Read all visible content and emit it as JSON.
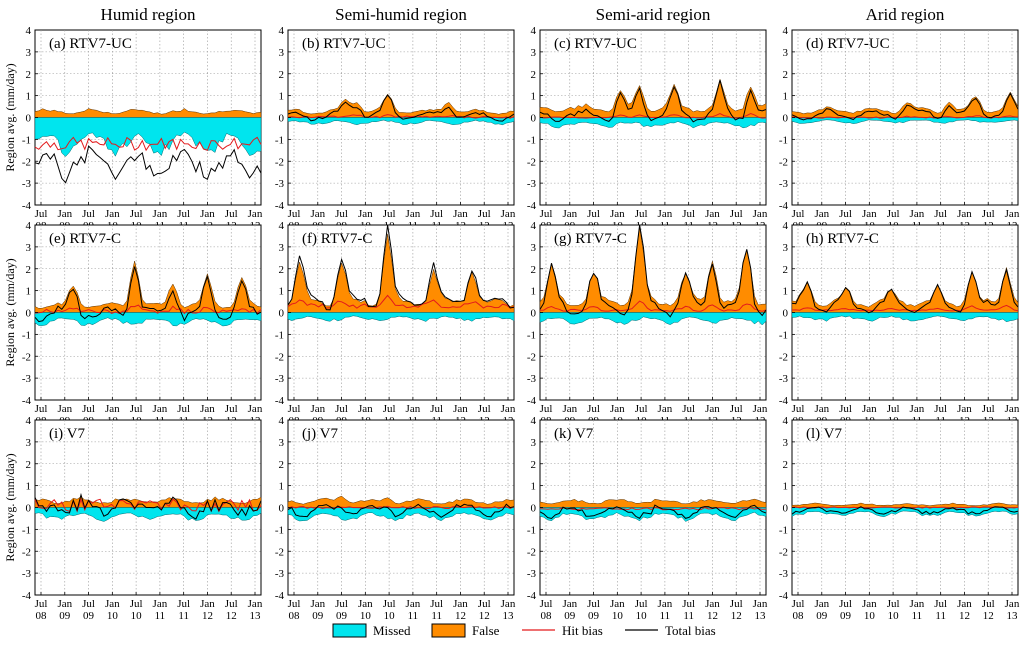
{
  "chart_data": {
    "type": "area",
    "columns": [
      "Humid region",
      "Semi-humid region",
      "Semi-arid region",
      "Arid region"
    ],
    "ylabel": "Region avg. (mm/day)",
    "ylim": [
      -4,
      4
    ],
    "yticks": [
      -4,
      -3,
      -2,
      -1,
      0,
      1,
      2,
      3,
      4
    ],
    "xtick_top": [
      "Jul",
      "Jan",
      "Jul",
      "Jan",
      "Jul",
      "Jan",
      "Jul",
      "Jan",
      "Jul",
      "Jan"
    ],
    "xtick_bottom": [
      "08",
      "09",
      "09",
      "10",
      "10",
      "11",
      "11",
      "12",
      "12",
      "13"
    ],
    "grid": true,
    "legend": {
      "position": "bottom-center",
      "items": [
        {
          "label": "Missed",
          "kind": "patch",
          "color": "#00e5ee"
        },
        {
          "label": "False",
          "kind": "patch",
          "color": "#ff8c00"
        },
        {
          "label": "Hit bias",
          "kind": "line",
          "color": "#e31a1c"
        },
        {
          "label": "Total bias",
          "kind": "line",
          "color": "#000000"
        }
      ]
    },
    "colors": {
      "missed": "#00e5ee",
      "false": "#ff8c00",
      "hit": "#e31a1c",
      "total": "#000000"
    },
    "panels": [
      {
        "label": "(a) RTV7-UC",
        "false_level": 0.3,
        "missed_level": -1.3,
        "hit_level": -1.2,
        "peaks": [],
        "hit_noise": 0.3
      },
      {
        "label": "(b) RTV7-UC",
        "false_level": 0.3,
        "missed_level": -0.25,
        "hit_level": 0.02,
        "peaks": [
          [
            15,
            0.6
          ],
          [
            18,
            0.6
          ],
          [
            26,
            0.9
          ],
          [
            42,
            0.6
          ]
        ],
        "hit_noise": 0.05
      },
      {
        "label": "(c) RTV7-UC",
        "false_level": 0.45,
        "missed_level": -0.35,
        "hit_level": 0.0,
        "peaks": [
          [
            21,
            1.0
          ],
          [
            26,
            1.2
          ],
          [
            35,
            1.1
          ],
          [
            47,
            1.3
          ],
          [
            55,
            1.3
          ]
        ],
        "hit_noise": 0.03
      },
      {
        "label": "(d) RTV7-UC",
        "false_level": 0.35,
        "missed_level": -0.2,
        "hit_level": 0.0,
        "peaks": [
          [
            30,
            0.5
          ],
          [
            41,
            0.5
          ],
          [
            48,
            0.8
          ],
          [
            57,
            0.8
          ]
        ],
        "hit_noise": 0.03
      },
      {
        "label": "(e) RTV7-C",
        "false_level": 0.35,
        "missed_level": -0.45,
        "hit_level": 0.05,
        "peaks": [
          [
            10,
            1.1
          ],
          [
            26,
            2.5
          ],
          [
            36,
            1.3
          ],
          [
            45,
            1.6
          ],
          [
            54,
            1.5
          ]
        ],
        "hit_noise": 0.1
      },
      {
        "label": "(f) RTV7-C",
        "false_level": 0.5,
        "missed_level": -0.3,
        "hit_level": 0.3,
        "peaks": [
          [
            3,
            2.2
          ],
          [
            14,
            2.2
          ],
          [
            26,
            3.8
          ],
          [
            38,
            1.8
          ],
          [
            48,
            1.8
          ]
        ],
        "hit_noise": 0.1
      },
      {
        "label": "(g) RTV7-C",
        "false_level": 0.55,
        "missed_level": -0.4,
        "hit_level": 0.1,
        "peaks": [
          [
            3,
            1.8
          ],
          [
            14,
            1.5
          ],
          [
            26,
            3.8
          ],
          [
            38,
            1.5
          ],
          [
            45,
            2.4
          ],
          [
            54,
            2.8
          ]
        ],
        "hit_noise": 0.05
      },
      {
        "label": "(h) RTV7-C",
        "false_level": 0.5,
        "missed_level": -0.3,
        "hit_level": 0.1,
        "peaks": [
          [
            4,
            1.0
          ],
          [
            14,
            0.6
          ],
          [
            26,
            0.6
          ],
          [
            38,
            0.8
          ],
          [
            47,
            1.7
          ],
          [
            56,
            2.0
          ]
        ],
        "hit_noise": 0.03
      },
      {
        "label": "(i) V7",
        "false_level": 0.35,
        "missed_level": -0.45,
        "hit_level": 0.1,
        "peaks": [],
        "hit_noise": 0.28
      },
      {
        "label": "(j) V7",
        "false_level": 0.3,
        "missed_level": -0.45,
        "hit_level": 0.0,
        "peaks": [
          [
            14,
            0.4
          ],
          [
            26,
            0.3
          ]
        ],
        "hit_noise": 0.05
      },
      {
        "label": "(k) V7",
        "false_level": 0.3,
        "missed_level": -0.45,
        "hit_level": -0.05,
        "peaks": [],
        "hit_noise": 0.05
      },
      {
        "label": "(l) V7",
        "false_level": 0.15,
        "missed_level": -0.3,
        "hit_level": 0.0,
        "peaks": [],
        "hit_noise": 0.03
      }
    ]
  }
}
